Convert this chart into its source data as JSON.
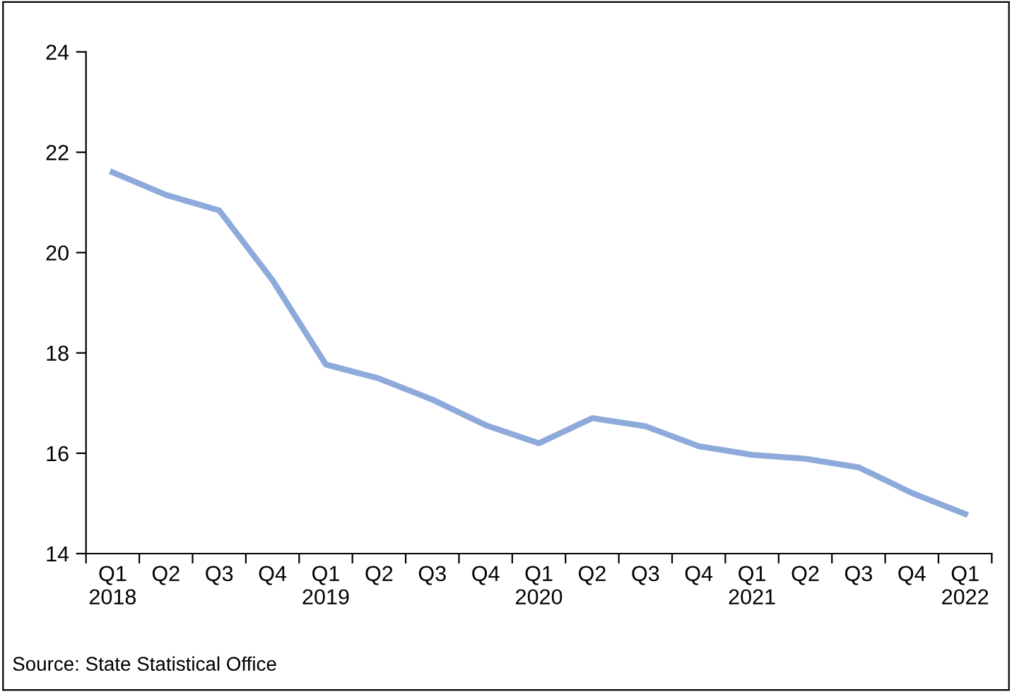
{
  "chart_data": {
    "type": "line",
    "categories": [
      "Q1\n2018",
      "Q2",
      "Q3",
      "Q4",
      "Q1\n2019",
      "Q2",
      "Q3",
      "Q4",
      "Q1\n2020",
      "Q2",
      "Q3",
      "Q4",
      "Q1\n2021",
      "Q2",
      "Q3",
      "Q4",
      "Q1\n2022"
    ],
    "series": [
      {
        "color": "#8eaadb",
        "values": [
          21.6,
          21.15,
          20.84,
          19.45,
          17.77,
          17.49,
          17.07,
          16.56,
          16.2,
          16.7,
          16.54,
          16.14,
          15.97,
          15.89,
          15.72,
          15.21,
          14.79
        ]
      }
    ],
    "ylim": [
      14,
      24
    ],
    "yticks": [
      14,
      16,
      18,
      20,
      22,
      24
    ],
    "grid": false,
    "legend": false,
    "marker": "none",
    "line_style": "solid",
    "annotations": [
      "Source: State Statistical Office"
    ]
  }
}
